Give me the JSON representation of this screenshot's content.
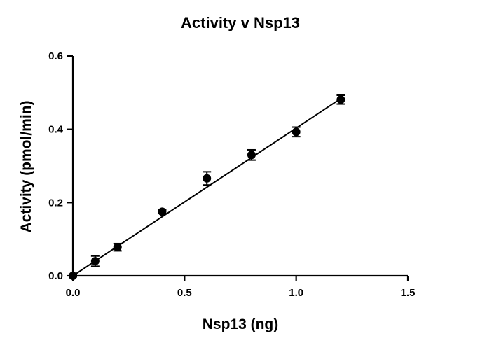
{
  "chart_data": {
    "type": "scatter",
    "title": "Activity v Nsp13",
    "xlabel": "Nsp13 (ng)",
    "ylabel": "Activity (pmol/min)",
    "xlim": [
      0,
      1.5
    ],
    "ylim": [
      0,
      0.6
    ],
    "x_ticks": [
      "0.0",
      "0.5",
      "1.0",
      "1.5"
    ],
    "y_ticks": [
      "0.0",
      "0.2",
      "0.4",
      "0.6"
    ],
    "grid": false,
    "legend": "none",
    "series": [
      {
        "x": [
          0.0,
          0.1,
          0.2,
          0.4,
          0.6,
          0.8,
          1.0,
          1.2
        ],
        "y": [
          0.0,
          0.04,
          0.078,
          0.175,
          0.266,
          0.33,
          0.393,
          0.481
        ],
        "error": [
          0.003,
          0.014,
          0.01,
          0.005,
          0.018,
          0.014,
          0.013,
          0.012
        ]
      }
    ],
    "fit_line": {
      "x": [
        0.0,
        1.2
      ],
      "y": [
        0.0,
        0.484
      ]
    }
  }
}
